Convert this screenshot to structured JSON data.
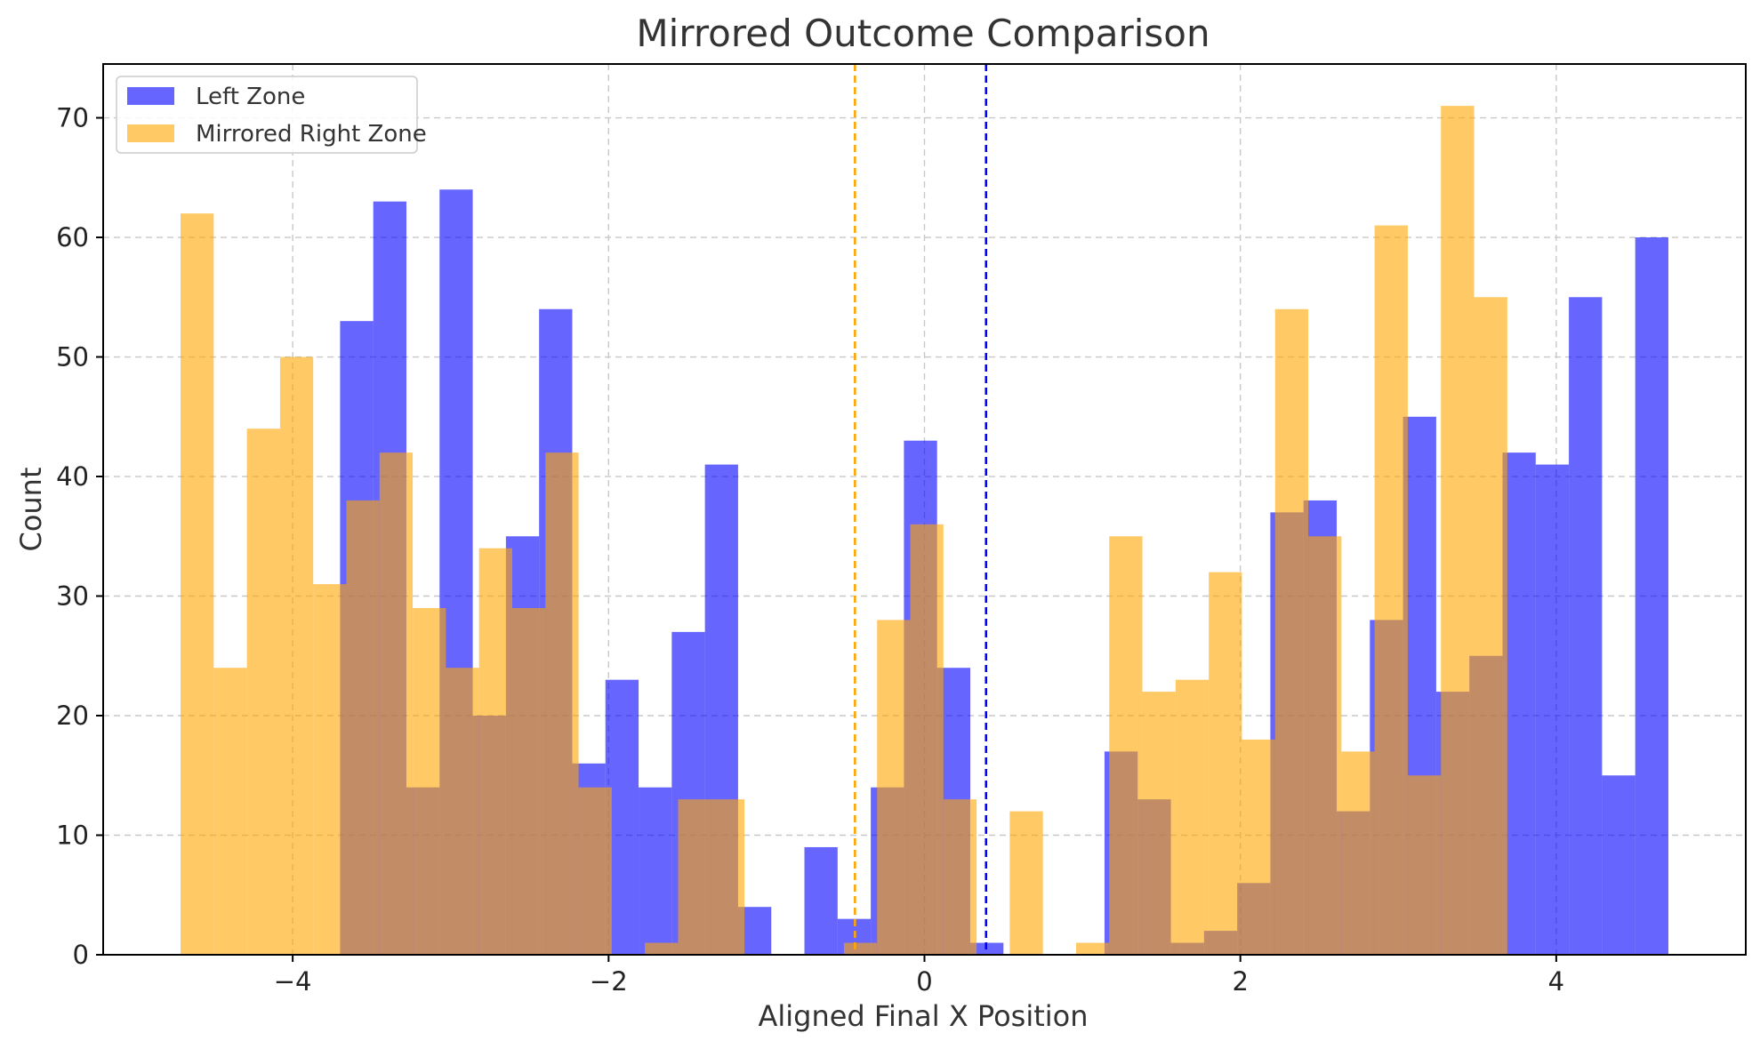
{
  "chart_data": {
    "type": "bar",
    "title": "Mirrored Outcome Comparison",
    "xlabel": "Aligned Final X Position",
    "ylabel": "Count",
    "xlim": [
      -5.2,
      5.2
    ],
    "ylim": [
      0,
      74.5
    ],
    "xticks": [
      {
        "value": -4,
        "label": "−4"
      },
      {
        "value": -2,
        "label": "−2"
      },
      {
        "value": 0,
        "label": "0"
      },
      {
        "value": 2,
        "label": "2"
      },
      {
        "value": 4,
        "label": "4"
      }
    ],
    "yticks": [
      {
        "value": 0,
        "label": "0"
      },
      {
        "value": 10,
        "label": "10"
      },
      {
        "value": 20,
        "label": "20"
      },
      {
        "value": 30,
        "label": "30"
      },
      {
        "value": 40,
        "label": "40"
      },
      {
        "value": 50,
        "label": "50"
      },
      {
        "value": 60,
        "label": "60"
      },
      {
        "value": 70,
        "label": "70"
      }
    ],
    "grid": true,
    "legend_position": "top-left",
    "series": [
      {
        "name": "Left Zone",
        "color": "#0000FF",
        "opacity": 0.6,
        "mean_line": 0.39,
        "bins": [
          [
            -3.7,
            -3.49,
            53
          ],
          [
            -3.49,
            -3.28,
            63
          ],
          [
            -3.28,
            -3.07,
            14
          ],
          [
            -3.07,
            -2.86,
            64
          ],
          [
            -2.86,
            -2.65,
            20
          ],
          [
            -2.65,
            -2.44,
            35
          ],
          [
            -2.44,
            -2.23,
            54
          ],
          [
            -2.23,
            -2.02,
            16
          ],
          [
            -2.02,
            -1.81,
            23
          ],
          [
            -1.81,
            -1.6,
            14
          ],
          [
            -1.6,
            -1.39,
            27
          ],
          [
            -1.39,
            -1.18,
            41
          ],
          [
            -1.18,
            -0.97,
            4
          ],
          [
            -0.76,
            -0.55,
            9
          ],
          [
            -0.55,
            -0.34,
            3
          ],
          [
            -0.34,
            -0.13,
            14
          ],
          [
            -0.13,
            0.08,
            43
          ],
          [
            0.08,
            0.29,
            24
          ],
          [
            0.29,
            0.5,
            1
          ],
          [
            1.14,
            1.35,
            17
          ],
          [
            1.35,
            1.56,
            13
          ],
          [
            1.56,
            1.77,
            1
          ],
          [
            1.77,
            1.98,
            2
          ],
          [
            1.98,
            2.19,
            6
          ],
          [
            2.19,
            2.4,
            37
          ],
          [
            2.4,
            2.61,
            38
          ],
          [
            2.61,
            2.82,
            12
          ],
          [
            2.82,
            3.03,
            28
          ],
          [
            3.03,
            3.24,
            45
          ],
          [
            3.24,
            3.45,
            22
          ],
          [
            3.45,
            3.66,
            25
          ],
          [
            3.66,
            3.87,
            42
          ],
          [
            3.87,
            4.08,
            41
          ],
          [
            4.08,
            4.29,
            55
          ],
          [
            4.29,
            4.5,
            15
          ],
          [
            4.5,
            4.71,
            60
          ]
        ]
      },
      {
        "name": "Mirrored Right Zone",
        "color": "#FFA500",
        "opacity": 0.6,
        "mean_line": -0.44,
        "bins": [
          [
            -4.71,
            -4.5,
            62
          ],
          [
            -4.5,
            -4.29,
            24
          ],
          [
            -4.29,
            -4.08,
            44
          ],
          [
            -4.08,
            -3.87,
            50
          ],
          [
            -3.87,
            -3.66,
            31
          ],
          [
            -3.66,
            -3.45,
            38
          ],
          [
            -3.45,
            -3.24,
            42
          ],
          [
            -3.24,
            -3.03,
            29
          ],
          [
            -3.03,
            -2.82,
            24
          ],
          [
            -2.82,
            -2.61,
            34
          ],
          [
            -2.61,
            -2.4,
            29
          ],
          [
            -2.4,
            -2.19,
            42
          ],
          [
            -2.19,
            -1.98,
            14
          ],
          [
            -1.77,
            -1.56,
            1
          ],
          [
            -1.56,
            -1.35,
            13
          ],
          [
            -1.35,
            -1.14,
            13
          ],
          [
            -0.51,
            -0.3,
            1
          ],
          [
            -0.3,
            -0.09,
            28
          ],
          [
            -0.09,
            0.12,
            36
          ],
          [
            0.12,
            0.33,
            13
          ],
          [
            0.54,
            0.75,
            12
          ],
          [
            0.96,
            1.17,
            1
          ],
          [
            1.17,
            1.38,
            35
          ],
          [
            1.38,
            1.59,
            22
          ],
          [
            1.59,
            1.8,
            23
          ],
          [
            1.8,
            2.01,
            32
          ],
          [
            2.01,
            2.22,
            18
          ],
          [
            2.22,
            2.43,
            54
          ],
          [
            2.43,
            2.64,
            35
          ],
          [
            2.64,
            2.85,
            17
          ],
          [
            2.85,
            3.06,
            61
          ],
          [
            3.06,
            3.27,
            15
          ],
          [
            3.27,
            3.48,
            71
          ],
          [
            3.48,
            3.69,
            55
          ]
        ]
      }
    ]
  }
}
